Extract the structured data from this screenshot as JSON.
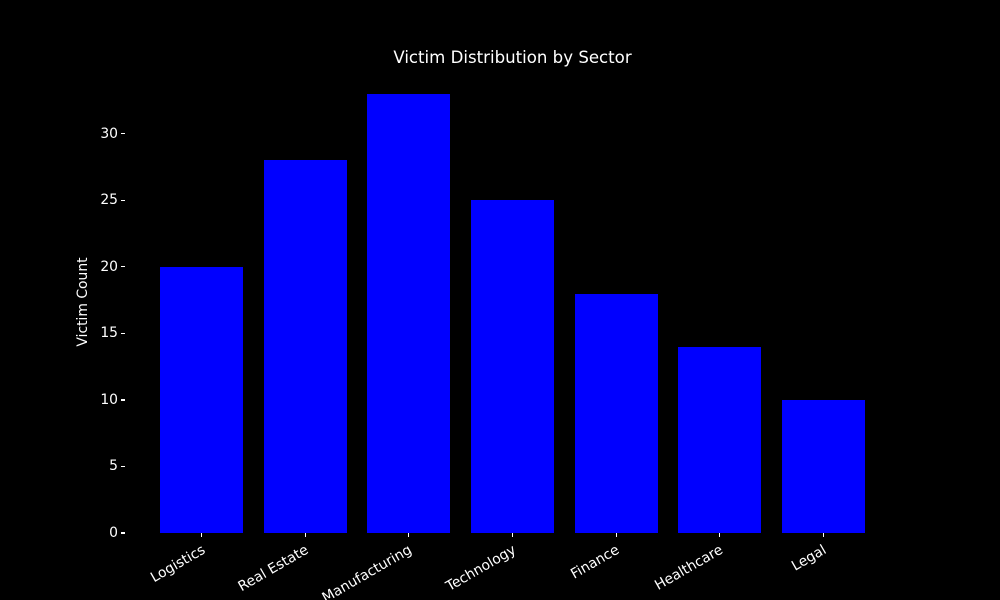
{
  "figure": {
    "background_color": "#000000",
    "text_color": "#ffffff",
    "bar_color": "#0000ff"
  },
  "chart_data": {
    "type": "bar",
    "title": "Victim Distribution by Sector",
    "xlabel": "",
    "ylabel": "Victim Count",
    "categories": [
      "Logistics",
      "Real Estate",
      "Manufacturing",
      "Technology",
      "Finance",
      "Healthcare",
      "Legal"
    ],
    "values": [
      20,
      28,
      33,
      25,
      18,
      14,
      10
    ],
    "yticks": [
      0,
      5,
      10,
      15,
      20,
      25,
      30
    ],
    "ylim": [
      0,
      34.65
    ],
    "xlim": [
      -0.74,
      6.74
    ],
    "bar_width": 0.8,
    "grid": false,
    "legend": "none",
    "xtick_rotation_deg": 30
  }
}
